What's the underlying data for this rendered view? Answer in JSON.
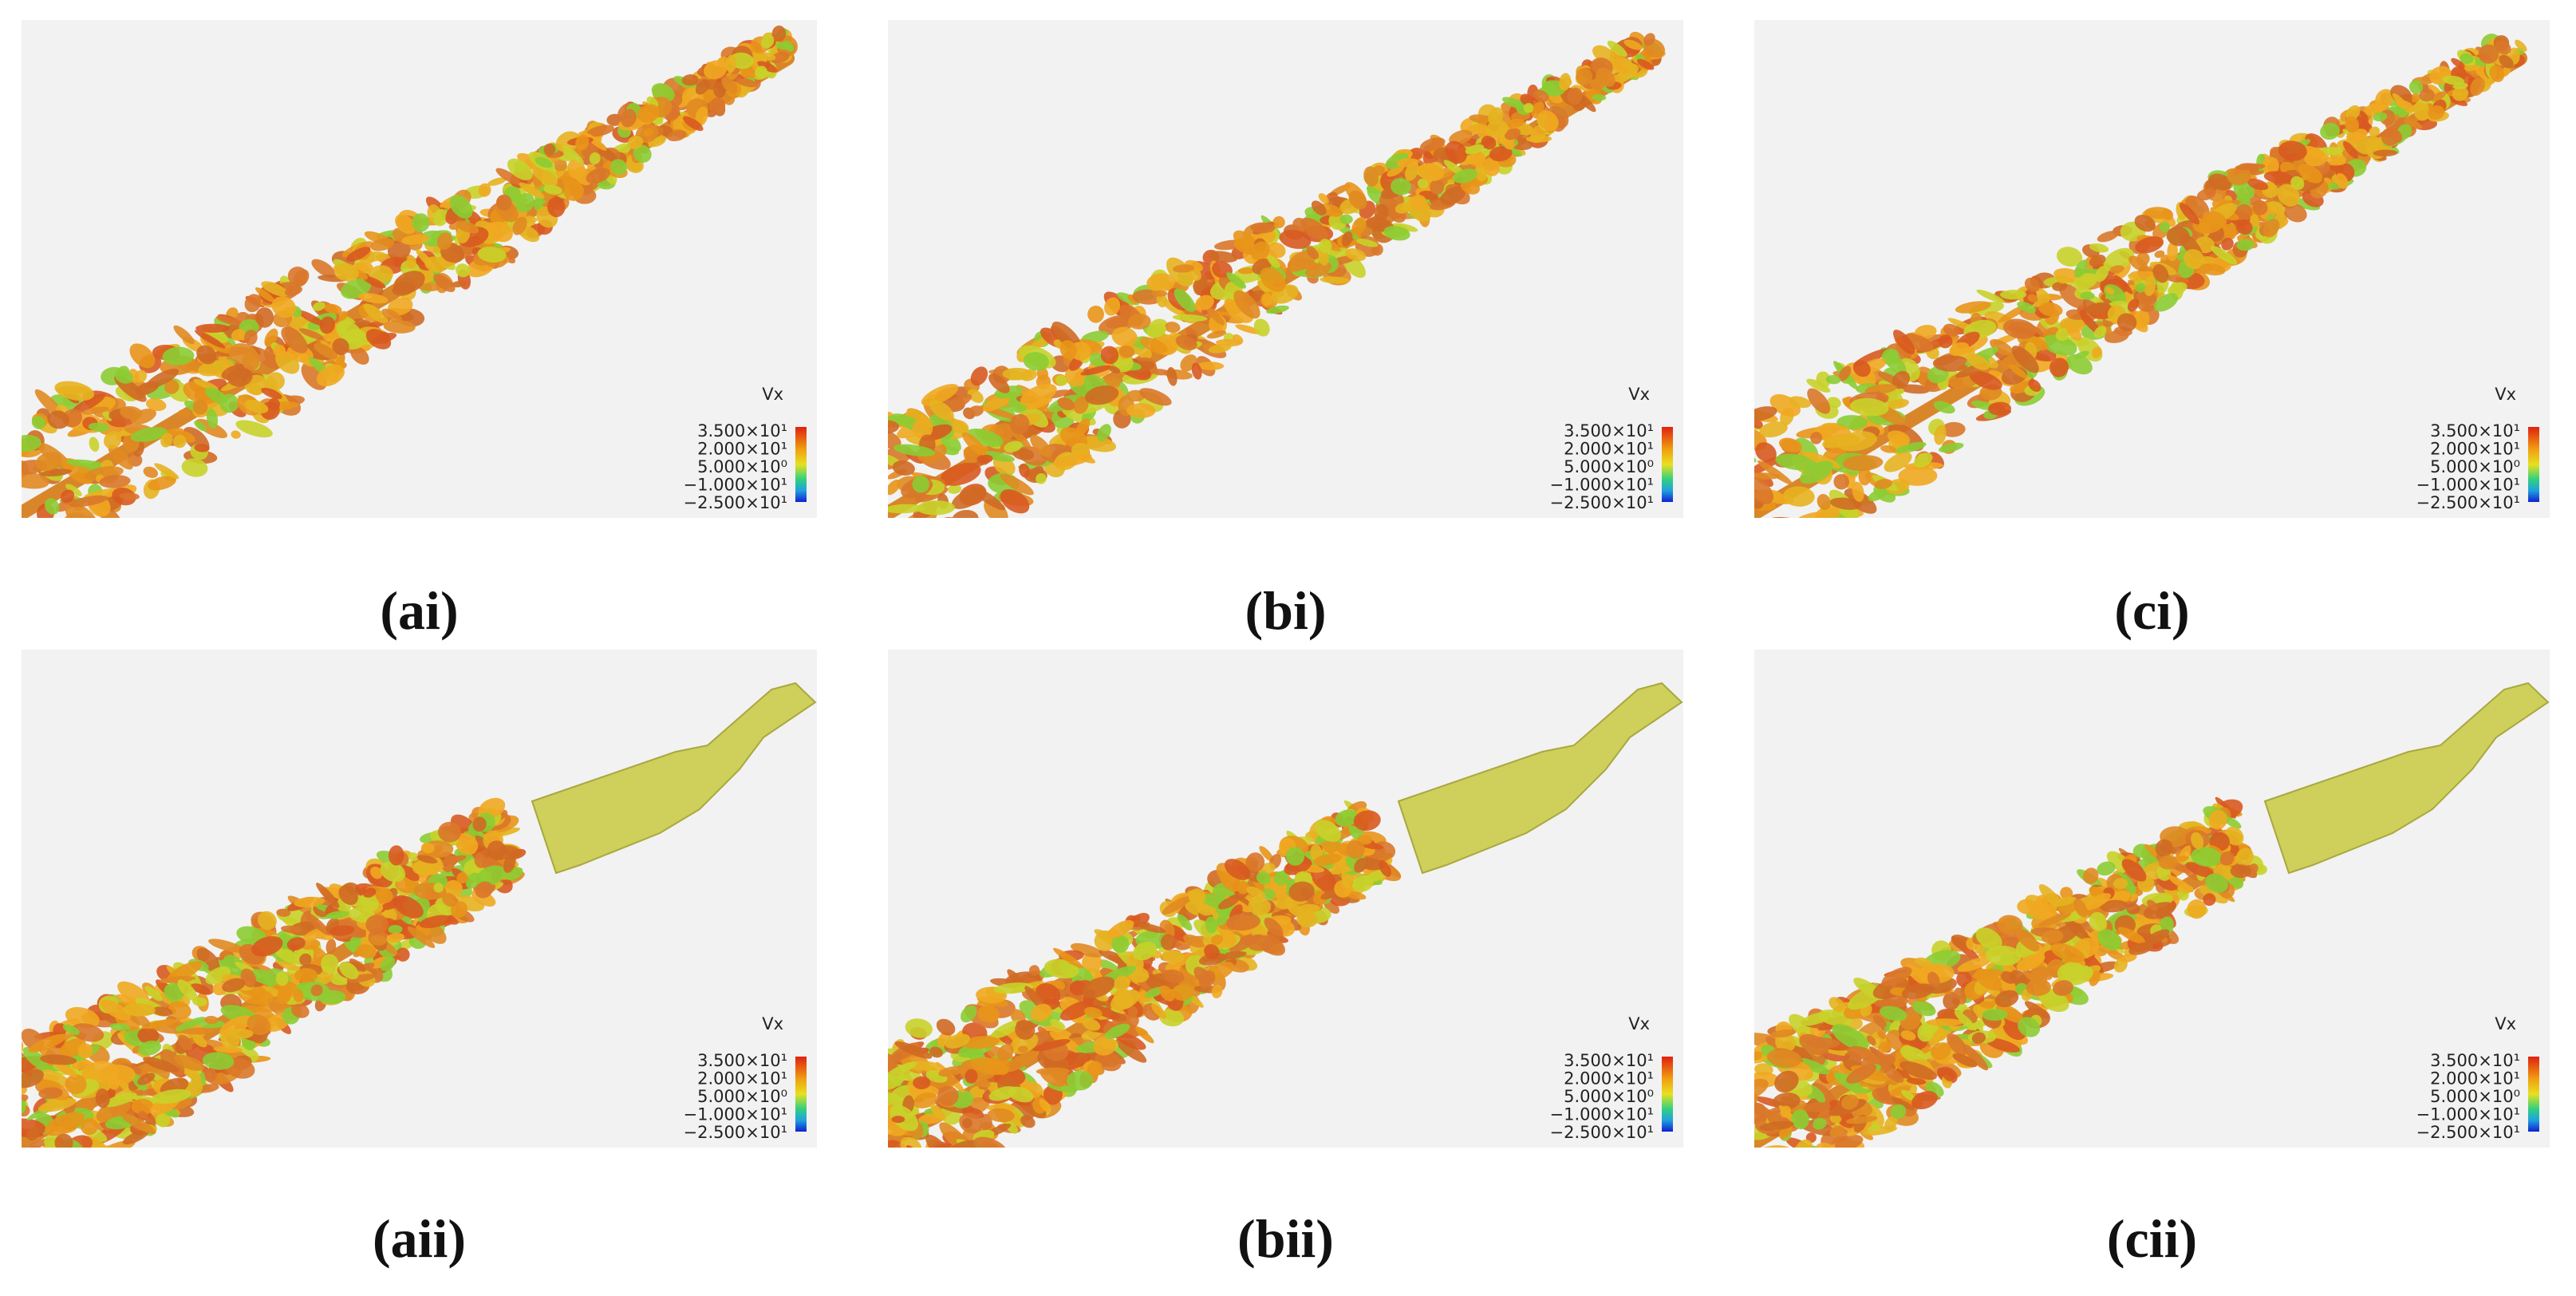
{
  "panels": [
    {
      "label": "(ai)",
      "colorbar": {
        "title": "Vx",
        "ticks": [
          "3.500×10¹",
          "2.000×10¹",
          "5.000×10⁰",
          "−1.000×10¹",
          "−2.500×10¹"
        ]
      }
    },
    {
      "label": "(bi)",
      "colorbar": {
        "title": "Vx",
        "ticks": [
          "3.500×10¹",
          "2.000×10¹",
          "5.000×10⁰",
          "−1.000×10¹",
          "−2.500×10¹"
        ]
      }
    },
    {
      "label": "(ci)",
      "colorbar": {
        "title": "Vx",
        "ticks": [
          "3.500×10¹",
          "2.000×10¹",
          "5.000×10⁰",
          "−1.000×10¹",
          "−2.500×10¹"
        ]
      }
    },
    {
      "label": "(aii)",
      "colorbar": {
        "title": "Vx",
        "ticks": [
          "3.500×10¹",
          "2.000×10¹",
          "5.000×10⁰",
          "−1.000×10¹",
          "−2.500×10¹"
        ]
      }
    },
    {
      "label": "(bii)",
      "colorbar": {
        "title": "Vx",
        "ticks": [
          "3.500×10¹",
          "2.000×10¹",
          "5.000×10⁰",
          "−1.000×10¹",
          "−2.500×10¹"
        ]
      }
    },
    {
      "label": "(cii)",
      "colorbar": {
        "title": "Vx",
        "ticks": [
          "3.500×10¹",
          "2.000×10¹",
          "5.000×10⁰",
          "−1.000×10¹",
          "−2.500×10¹"
        ]
      }
    }
  ]
}
